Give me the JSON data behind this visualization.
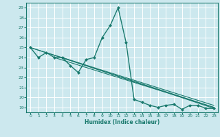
{
  "xlabel": "Humidex (Indice chaleur)",
  "bg_color": "#cce8ee",
  "grid_color": "#ffffff",
  "line_color": "#1a7a6e",
  "xlim": [
    -0.5,
    23.5
  ],
  "ylim": [
    18.5,
    29.5
  ],
  "yticks": [
    19,
    20,
    21,
    22,
    23,
    24,
    25,
    26,
    27,
    28,
    29
  ],
  "xticks": [
    0,
    1,
    2,
    3,
    4,
    5,
    6,
    7,
    8,
    9,
    10,
    11,
    12,
    13,
    14,
    15,
    16,
    17,
    18,
    19,
    20,
    21,
    22,
    23
  ],
  "main_x": [
    0,
    1,
    2,
    3,
    4,
    5,
    6,
    7,
    8,
    9,
    10,
    11,
    12,
    13,
    14,
    15,
    16,
    17,
    18,
    19,
    20,
    21,
    22,
    23
  ],
  "main_y": [
    25.0,
    24.0,
    24.5,
    24.0,
    24.0,
    23.2,
    22.5,
    23.8,
    24.0,
    26.0,
    27.2,
    29.0,
    25.5,
    19.8,
    19.5,
    19.2,
    19.0,
    19.2,
    19.3,
    18.8,
    19.2,
    19.2,
    18.9,
    18.9
  ],
  "trend_lines": [
    {
      "x": [
        0,
        23
      ],
      "y": [
        25.0,
        19.2
      ]
    },
    {
      "x": [
        0,
        23
      ],
      "y": [
        25.0,
        19.0
      ]
    },
    {
      "x": [
        3,
        23
      ],
      "y": [
        24.0,
        19.0
      ]
    },
    {
      "x": [
        4,
        23
      ],
      "y": [
        24.0,
        18.9
      ]
    }
  ]
}
